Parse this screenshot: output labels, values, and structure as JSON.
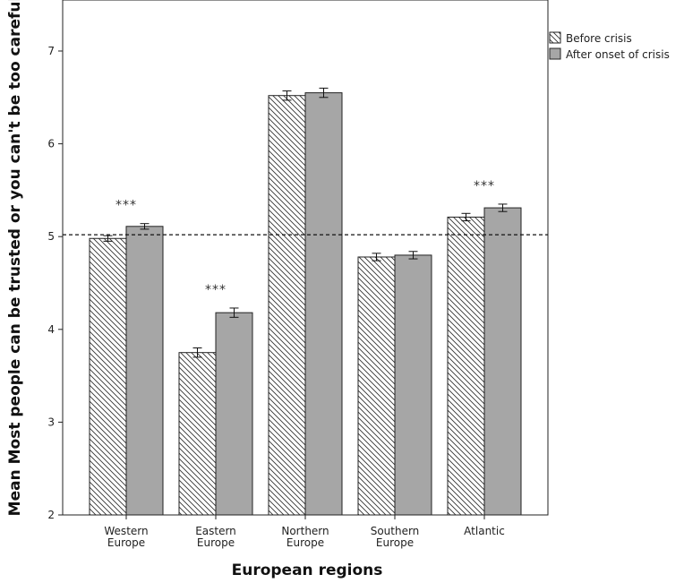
{
  "chart_data": {
    "type": "bar",
    "xlabel": "European regions",
    "ylabel": "Mean Most people can be trusted or you can't be too careful",
    "ylim": [
      2,
      7.55
    ],
    "yticks": [
      2,
      3,
      4,
      5,
      6,
      7
    ],
    "categories": [
      [
        "Western",
        "Europe"
      ],
      [
        "Eastern",
        "Europe"
      ],
      [
        "Northern",
        "Europe"
      ],
      [
        "Southern",
        "Europe"
      ],
      [
        "Atlantic"
      ]
    ],
    "series": [
      {
        "name": "Before crisis",
        "fill": "hatched",
        "values": [
          4.98,
          3.75,
          6.52,
          4.78,
          5.21
        ],
        "err": [
          0.03,
          0.05,
          0.05,
          0.04,
          0.04
        ]
      },
      {
        "name": "After onset of crisis",
        "fill": "#a6a6a6",
        "values": [
          5.11,
          4.18,
          6.55,
          4.8,
          5.31
        ],
        "err": [
          0.03,
          0.05,
          0.05,
          0.04,
          0.04
        ]
      }
    ],
    "reference_line": 5.02,
    "significance": [
      "***",
      "***",
      "",
      "",
      "***"
    ],
    "legend_position": "right",
    "grid": false
  }
}
